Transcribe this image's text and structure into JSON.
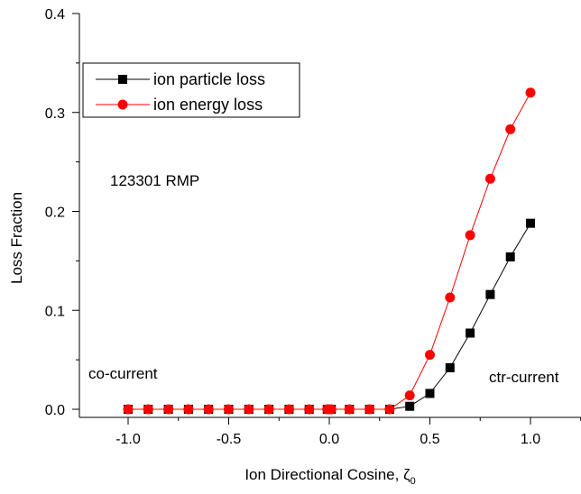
{
  "chart_data": {
    "type": "line",
    "xlabel": "Ion Directional Cosine, ζ",
    "xlabel_subscript": "0",
    "ylabel": "Loss Fraction",
    "xlim": [
      -1.25,
      1.25
    ],
    "ylim": [
      0,
      0.4
    ],
    "x_ticks": [
      -1.0,
      -0.5,
      0.0,
      0.5,
      1.0
    ],
    "x_tick_labels": [
      "-1.0",
      "-0.5",
      "0.0",
      "0.5",
      "1.0"
    ],
    "y_ticks": [
      0.0,
      0.1,
      0.2,
      0.3,
      0.4
    ],
    "y_tick_labels": [
      "0.0",
      "0.1",
      "0.2",
      "0.3",
      "0.4"
    ],
    "grid": false,
    "legend_position": "top-left",
    "annotations": [
      {
        "text": "123301 RMP"
      },
      {
        "text": "co-current"
      },
      {
        "text": "ctr-current"
      }
    ],
    "series": [
      {
        "name": "ion particle loss",
        "color": "#000000",
        "marker": "square",
        "x": [
          -1.0,
          -0.9,
          -0.8,
          -0.7,
          -0.6,
          -0.5,
          -0.4,
          -0.3,
          -0.2,
          -0.1,
          -0.01,
          0.0,
          0.01,
          0.1,
          0.2,
          0.3,
          0.4,
          0.5,
          0.6,
          0.7,
          0.8,
          0.9,
          1.0
        ],
        "y": [
          0,
          0,
          0,
          0,
          0,
          0,
          0,
          0,
          0,
          0,
          0,
          0,
          0,
          0,
          0,
          0,
          0.003,
          0.016,
          0.042,
          0.077,
          0.116,
          0.154,
          0.188
        ]
      },
      {
        "name": "ion energy loss",
        "color": "#ff0000",
        "marker": "circle",
        "x": [
          -1.0,
          -0.9,
          -0.8,
          -0.7,
          -0.6,
          -0.5,
          -0.4,
          -0.3,
          -0.2,
          -0.1,
          -0.01,
          0.0,
          0.01,
          0.1,
          0.2,
          0.3,
          0.4,
          0.5,
          0.6,
          0.7,
          0.8,
          0.9,
          1.0
        ],
        "y": [
          0,
          0,
          0,
          0,
          0,
          0,
          0,
          0,
          0,
          0,
          0,
          0,
          0,
          0,
          0,
          0,
          0.014,
          0.055,
          0.113,
          0.176,
          0.233,
          0.283,
          0.32
        ]
      }
    ]
  }
}
